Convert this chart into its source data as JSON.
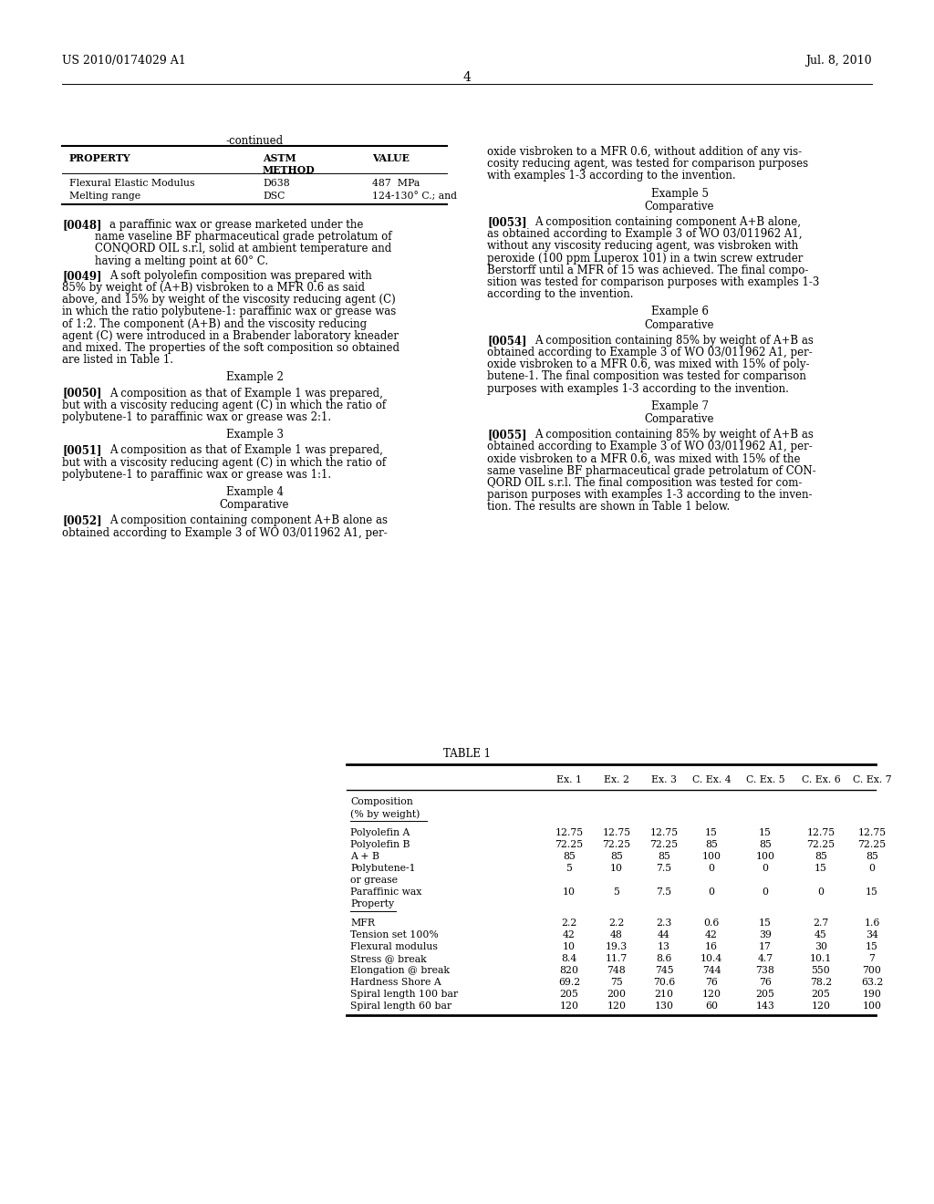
{
  "page_number": "4",
  "patent_number": "US 2010/0174029 A1",
  "patent_date": "Jul. 8, 2010",
  "bg_color": "#ffffff",
  "table1": {
    "title": "TABLE 1",
    "col_headers": [
      "",
      "Ex. 1",
      "Ex. 2",
      "Ex. 3",
      "C. Ex. 4",
      "C. Ex. 5",
      "C. Ex. 6",
      "C. Ex. 7"
    ],
    "comp_rows": [
      [
        "Polyolefin A",
        "12.75",
        "12.75",
        "12.75",
        "15",
        "15",
        "12.75",
        "12.75"
      ],
      [
        "Polyolefin B",
        "72.25",
        "72.25",
        "72.25",
        "85",
        "85",
        "72.25",
        "72.25"
      ],
      [
        "A + B",
        "85",
        "85",
        "85",
        "100",
        "100",
        "85",
        "85"
      ],
      [
        "Polybutene-1",
        "5",
        "10",
        "7.5",
        "0",
        "0",
        "15",
        "0"
      ],
      [
        "Paraffinic wax",
        "10",
        "5",
        "7.5",
        "0",
        "0",
        "0",
        "15"
      ]
    ],
    "prop_rows": [
      [
        "MFR",
        "2.2",
        "2.2",
        "2.3",
        "0.6",
        "15",
        "2.7",
        "1.6"
      ],
      [
        "Tension set 100%",
        "42",
        "48",
        "44",
        "42",
        "39",
        "45",
        "34"
      ],
      [
        "Flexural modulus",
        "10",
        "19.3",
        "13",
        "16",
        "17",
        "30",
        "15"
      ],
      [
        "Stress @ break",
        "8.4",
        "11.7",
        "8.6",
        "10.4",
        "4.7",
        "10.1",
        "7"
      ],
      [
        "Elongation @ break",
        "820",
        "748",
        "745",
        "744",
        "738",
        "550",
        "700"
      ],
      [
        "Hardness Shore A",
        "69.2",
        "75",
        "70.6",
        "76",
        "76",
        "78.2",
        "63.2"
      ],
      [
        "Spiral length 100 bar",
        "205",
        "200",
        "210",
        "120",
        "205",
        "205",
        "190"
      ],
      [
        "Spiral length 60 bar",
        "120",
        "120",
        "130",
        "60",
        "143",
        "120",
        "100"
      ]
    ]
  }
}
